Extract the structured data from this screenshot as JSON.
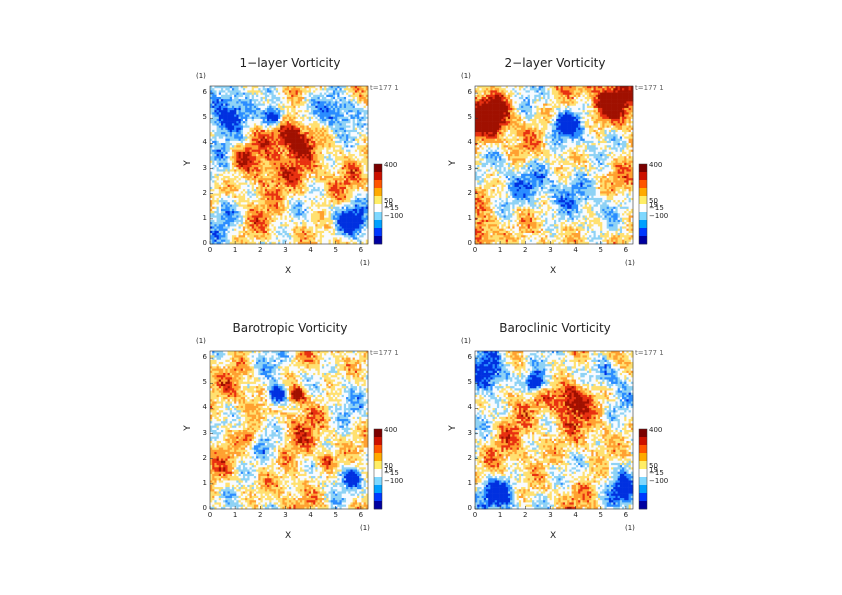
{
  "figure": {
    "panels": [
      {
        "title": "1−layer Vorticity",
        "variant": "onelayer"
      },
      {
        "title": "2−layer Vorticity",
        "variant": "twolayer"
      },
      {
        "title": "Barotropic Vorticity",
        "variant": "barotropic"
      },
      {
        "title": "Baroclinic Vorticity",
        "variant": "baroclinic"
      }
    ],
    "time_label": "t=177 1",
    "unit_label": "(1)",
    "xlabel": "X",
    "ylabel": "Y",
    "x_ticks": [
      "0",
      "1",
      "2",
      "3",
      "4",
      "5",
      "6"
    ],
    "y_ticks": [
      "0",
      "1",
      "2",
      "3",
      "4",
      "5",
      "6"
    ],
    "colorbar": {
      "labels": [
        "400",
        "50",
        "19",
        "−15",
        "−100"
      ],
      "colors": [
        "#0000a0",
        "#0038ff",
        "#00a0ff",
        "#7fd8ff",
        "#ffffff",
        "#ffee66",
        "#ffaa00",
        "#ff5500",
        "#cc1100",
        "#7a0000"
      ]
    },
    "field_palette": {
      "deep_blue": "#0030e0",
      "blue": "#2a8cff",
      "light_blue": "#8ed2f5",
      "white": "#f8fbff",
      "yellow": "#ffe070",
      "orange": "#ffa030",
      "red": "#e83010",
      "dark_red": "#a01000"
    }
  }
}
